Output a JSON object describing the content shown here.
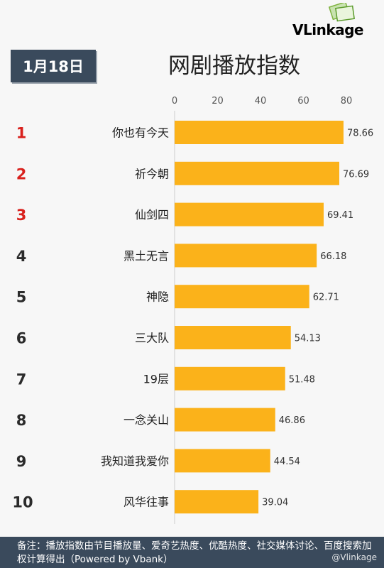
{
  "header": {
    "date": "1月18日",
    "brand": "VLinkage"
  },
  "footer": {
    "note": "备注：播放指数由节目播放量、爱奇艺热度、优酷热度、社交媒体讨论、百度搜索加权计算得出（Powered by Vbank）",
    "watermark": "@Vlinkage"
  },
  "colors": {
    "bar": "#fbb21a",
    "rank_top": "#d9211d",
    "rank_other": "#2b2b2b",
    "badge": "#3a4a5c"
  },
  "chart_data": {
    "type": "bar",
    "orientation": "horizontal",
    "title": "网剧播放指数",
    "xlim": [
      0,
      80
    ],
    "xticks": [
      0,
      20,
      40,
      60,
      80
    ],
    "ranks": [
      "1",
      "2",
      "3",
      "4",
      "5",
      "6",
      "7",
      "8",
      "9",
      "10"
    ],
    "categories": [
      "你也有今天",
      "祈今朝",
      "仙剑四",
      "黑土无言",
      "神隐",
      "三大队",
      "19层",
      "一念关山",
      "我知道我爱你",
      "风华往事"
    ],
    "values": [
      78.66,
      76.69,
      69.41,
      66.18,
      62.71,
      54.13,
      51.48,
      46.86,
      44.54,
      39.04
    ],
    "grid": false,
    "legend": "none"
  }
}
